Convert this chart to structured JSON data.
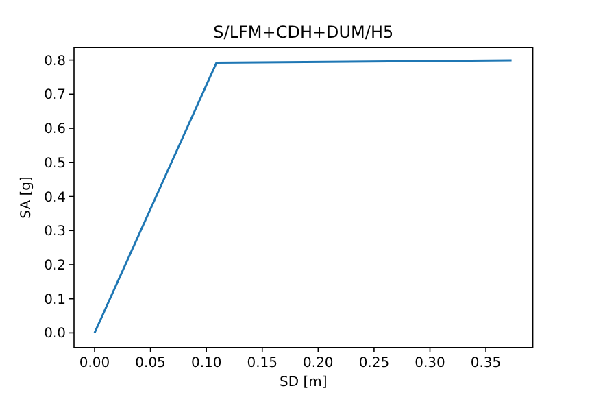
{
  "chart_data": {
    "type": "line",
    "title": "S/LFM+CDH+DUM/H5",
    "xlabel": "SD [m]",
    "ylabel": "SA [g]",
    "x": [
      0,
      0.109,
      0.373
    ],
    "series": [
      {
        "color": "#1f77b4",
        "values": [
          0,
          0.792,
          0.799
        ]
      }
    ],
    "xlim": [
      -0.0184,
      0.392
    ],
    "ylim": [
      -0.043,
      0.837
    ],
    "xticks": [
      {
        "value": 0,
        "label": "0.00"
      },
      0.05,
      {
        "value": 0.1,
        "label": "0.10"
      },
      0.15,
      {
        "value": 0.2,
        "label": "0.20"
      },
      0.25,
      {
        "value": 0.3,
        "label": "0.30"
      },
      0.35
    ],
    "yticks": [
      {
        "value": 0,
        "label": "0.0"
      },
      0.1,
      0.2,
      0.3,
      0.4,
      0.5,
      0.6,
      0.7,
      0.8
    ],
    "marker": "none",
    "line_style": "solid"
  }
}
